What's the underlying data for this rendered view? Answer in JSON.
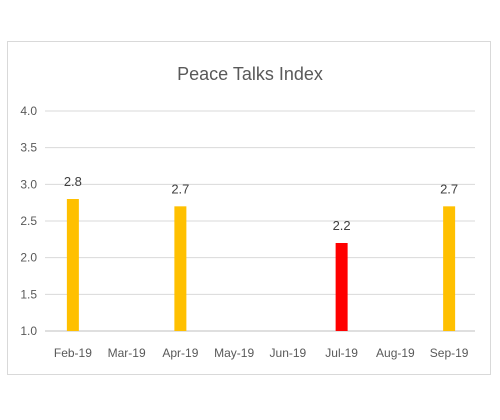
{
  "chart_data": {
    "type": "bar",
    "title": "Peace Talks Index",
    "xlabel": "",
    "ylabel": "",
    "categories": [
      "Feb-19",
      "Mar-19",
      "Apr-19",
      "May-19",
      "Jun-19",
      "Jul-19",
      "Aug-19",
      "Sep-19"
    ],
    "values": [
      2.8,
      null,
      2.7,
      null,
      null,
      2.2,
      null,
      2.7
    ],
    "data_labels": [
      "2.8",
      "",
      "2.7",
      "",
      "",
      "2.2",
      "",
      "2.7"
    ],
    "bar_colors": [
      "#ffc000",
      "",
      "#ffc000",
      "",
      "",
      "#ff0000",
      "",
      "#ffc000"
    ],
    "ylim": [
      1.0,
      4.0
    ],
    "yticks": [
      "1.0",
      "1.5",
      "2.0",
      "2.5",
      "3.0",
      "3.5",
      "4.0"
    ],
    "grid": true,
    "legend": "none"
  }
}
